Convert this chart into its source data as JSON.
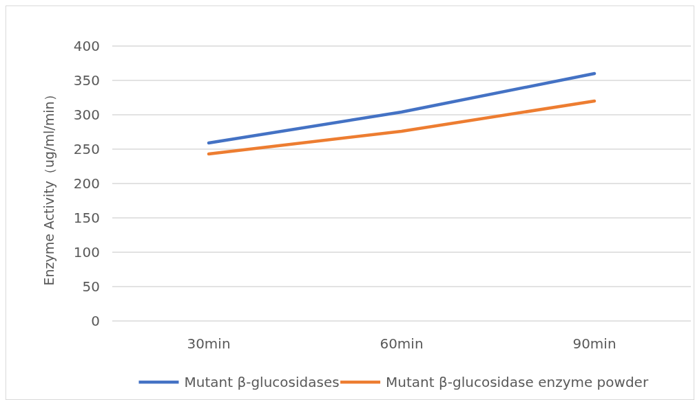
{
  "chart_data": {
    "type": "line",
    "ylabel": "Enzyme Activity（ug/ml/min）",
    "categories": [
      "30min",
      "60min",
      "90min"
    ],
    "series": [
      {
        "name": "Mutant β-glucosidases",
        "color": "#4472c4",
        "values": [
          259,
          304,
          360
        ]
      },
      {
        "name": "Mutant β-glucosidase enzyme powder",
        "color": "#ed7d31",
        "values": [
          243,
          276,
          320
        ]
      }
    ],
    "ylim": [
      0,
      400
    ],
    "yticks": [
      0,
      50,
      100,
      150,
      200,
      250,
      300,
      350,
      400
    ],
    "grid": "y",
    "legend": "bottom"
  }
}
